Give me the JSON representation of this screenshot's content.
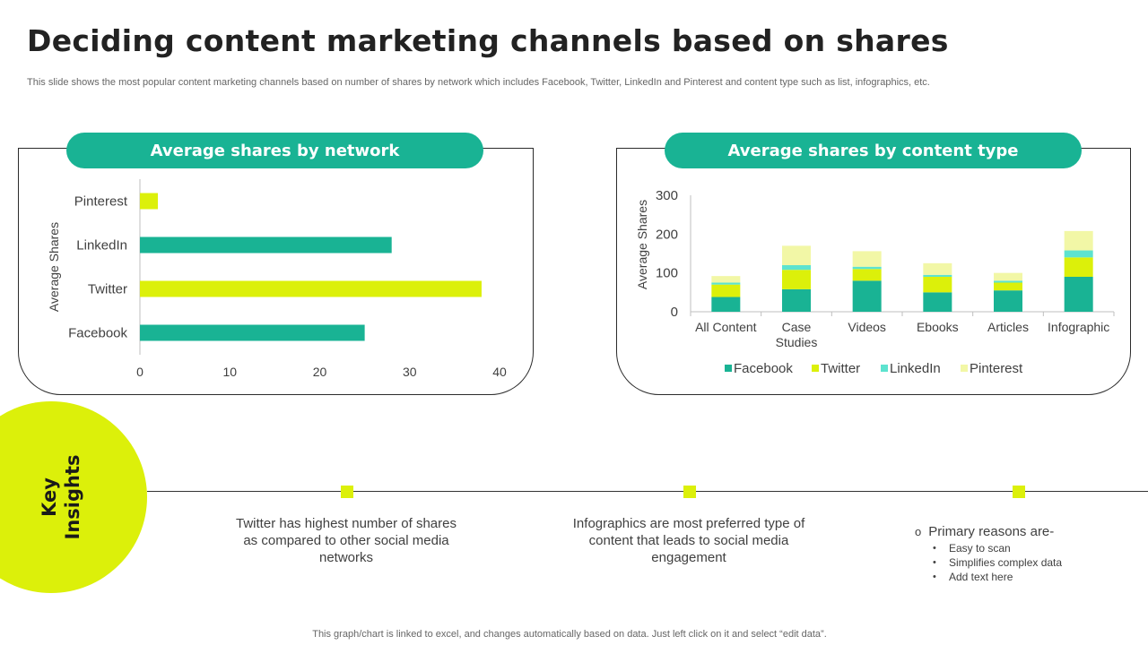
{
  "title": "Deciding content marketing channels based on shares",
  "subtitle": "This slide shows the most popular content marketing channels based on number of shares by network which includes Facebook, Twitter, LinkedIn and Pinterest and content type  such as list, infographics, etc.",
  "colors": {
    "teal": "#19b394",
    "lime": "#dcf00a",
    "cyan": "#5de3cf",
    "pale": "#f2f7a6"
  },
  "chart_data": [
    {
      "type": "bar",
      "orientation": "horizontal",
      "title": "Average shares by network",
      "categories": [
        "Pinterest",
        "LinkedIn",
        "Twitter",
        "Facebook"
      ],
      "values": [
        2,
        28,
        38,
        25
      ],
      "bar_colors": [
        "#dcf00a",
        "#19b394",
        "#dcf00a",
        "#19b394"
      ],
      "xlabel": "",
      "ylabel": "Average Shares",
      "xlim": [
        0,
        40
      ],
      "xticks": [
        "0",
        "10",
        "20",
        "30",
        "40"
      ]
    },
    {
      "type": "bar",
      "stacked": true,
      "title": "Average shares by content type",
      "categories": [
        "All Content",
        "Case Studies",
        "Videos",
        "Ebooks",
        "Articles",
        "Infographic"
      ],
      "series": [
        {
          "name": "Facebook",
          "color": "#19b394",
          "values": [
            38,
            58,
            80,
            50,
            55,
            90
          ]
        },
        {
          "name": "Twitter",
          "color": "#dcf00a",
          "values": [
            32,
            50,
            30,
            40,
            20,
            50
          ]
        },
        {
          "name": "LinkedIn",
          "color": "#5de3cf",
          "values": [
            5,
            12,
            6,
            5,
            5,
            18
          ]
        },
        {
          "name": "Pinterest",
          "color": "#f2f7a6",
          "values": [
            17,
            50,
            40,
            30,
            20,
            50
          ]
        }
      ],
      "ylabel": "Average Shares",
      "ylim": [
        0,
        300
      ],
      "yticks": [
        "0",
        "100",
        "200",
        "300"
      ],
      "legend_position": "bottom"
    }
  ],
  "key_insights": {
    "label_line1": "Key",
    "label_line2": "Insights",
    "insight1": "Twitter has highest number of shares as compared to other social media networks",
    "insight2": "Infographics are most preferred type of content that leads to social media engagement",
    "reasons_title": "Primary reasons are-",
    "reasons_bullet": "o",
    "reasons": [
      "Easy to scan",
      "Simplifies complex data",
      "Add text here"
    ]
  },
  "footer": "This graph/chart is linked to excel,  and changes automatically based on data. Just left click on it and select “edit data”."
}
